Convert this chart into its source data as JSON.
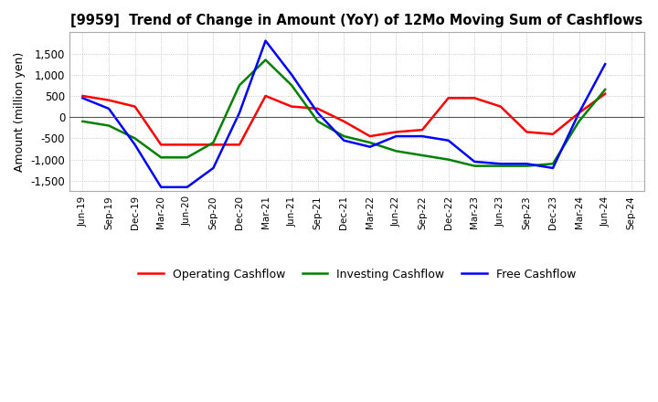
{
  "title": "[9959]  Trend of Change in Amount (YoY) of 12Mo Moving Sum of Cashflows",
  "ylabel": "Amount (million yen)",
  "ylim": [
    -1750,
    2000
  ],
  "yticks": [
    -1500,
    -1000,
    -500,
    0,
    500,
    1000,
    1500
  ],
  "x_labels": [
    "Jun-19",
    "Sep-19",
    "Dec-19",
    "Mar-20",
    "Jun-20",
    "Sep-20",
    "Dec-20",
    "Mar-21",
    "Jun-21",
    "Sep-21",
    "Dec-21",
    "Mar-22",
    "Jun-22",
    "Sep-22",
    "Dec-22",
    "Mar-23",
    "Jun-23",
    "Sep-23",
    "Dec-23",
    "Mar-24",
    "Jun-24",
    "Sep-24"
  ],
  "operating": [
    500,
    400,
    250,
    -650,
    -650,
    -650,
    -650,
    500,
    250,
    200,
    -100,
    -450,
    -350,
    -300,
    450,
    450,
    250,
    -350,
    -400,
    100,
    550,
    null
  ],
  "investing": [
    -100,
    -200,
    -500,
    -950,
    -950,
    -600,
    750,
    1350,
    750,
    -100,
    -450,
    -600,
    -800,
    -900,
    -1000,
    -1150,
    -1150,
    -1150,
    -1100,
    -100,
    650,
    null
  ],
  "free": [
    450,
    200,
    -650,
    -1650,
    -1650,
    -1200,
    100,
    1800,
    1000,
    100,
    -550,
    -700,
    -450,
    -450,
    -550,
    -1050,
    -1100,
    -1100,
    -1200,
    100,
    1250,
    null
  ],
  "operating_color": "#ff0000",
  "investing_color": "#008000",
  "free_color": "#0000ff",
  "background_color": "#ffffff",
  "grid_color": "#bbbbbb",
  "grid_style": ":"
}
